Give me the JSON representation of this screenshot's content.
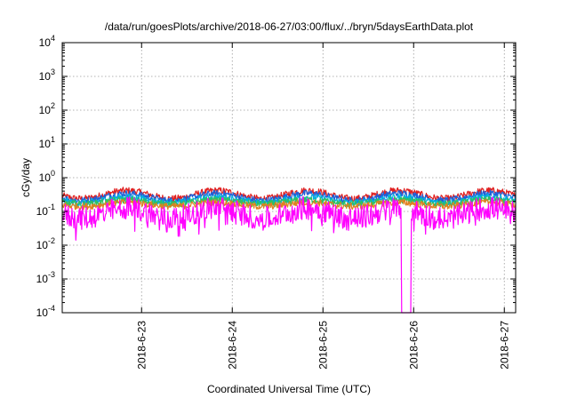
{
  "chart_data": {
    "type": "line",
    "title": "/data/run/goesPlots/archive/2018-06-27/03:00/flux/../bryn/5daysEarthData.plot",
    "xlabel": "Coordinated Universal Time (UTC)",
    "ylabel": "cGy/day",
    "yscale": "log",
    "ylim": [
      0.0001,
      10000
    ],
    "y_tick_labels": [
      {
        "base": "10",
        "exp": "-4"
      },
      {
        "base": "10",
        "exp": "-3"
      },
      {
        "base": "10",
        "exp": "-2"
      },
      {
        "base": "10",
        "exp": "-1"
      },
      {
        "base": "10",
        "exp": "0"
      },
      {
        "base": "10",
        "exp": "1"
      },
      {
        "base": "10",
        "exp": "2"
      },
      {
        "base": "10",
        "exp": "3"
      },
      {
        "base": "10",
        "exp": "4"
      }
    ],
    "xlim": [
      "2018-06-22 03:00",
      "2018-06-27 03:00"
    ],
    "x_tick_labels": [
      "2018-6-23",
      "2018-6-24",
      "2018-6-25",
      "2018-6-26",
      "2018-6-27"
    ],
    "grid": true,
    "series": [
      {
        "color": "#e02020",
        "approx_daily_peak": 0.5,
        "approx_daily_trough": 0.2
      },
      {
        "color": "#1f5fd8",
        "approx_daily_peak": 0.4,
        "approx_daily_trough": 0.18
      },
      {
        "color": "#00b0e0",
        "approx_daily_peak": 0.3,
        "approx_daily_trough": 0.16
      },
      {
        "color": "#30c060",
        "approx_daily_peak": 0.24,
        "approx_daily_trough": 0.15
      },
      {
        "color": "#e08020",
        "approx_daily_peak": 0.2,
        "approx_daily_trough": 0.13
      },
      {
        "color": "#ff00ff",
        "approx_daily_peak": 0.16,
        "approx_daily_trough": 0.05,
        "dropout": {
          "time": "2018-06-25 22:00",
          "min": 0.0001
        }
      }
    ]
  }
}
